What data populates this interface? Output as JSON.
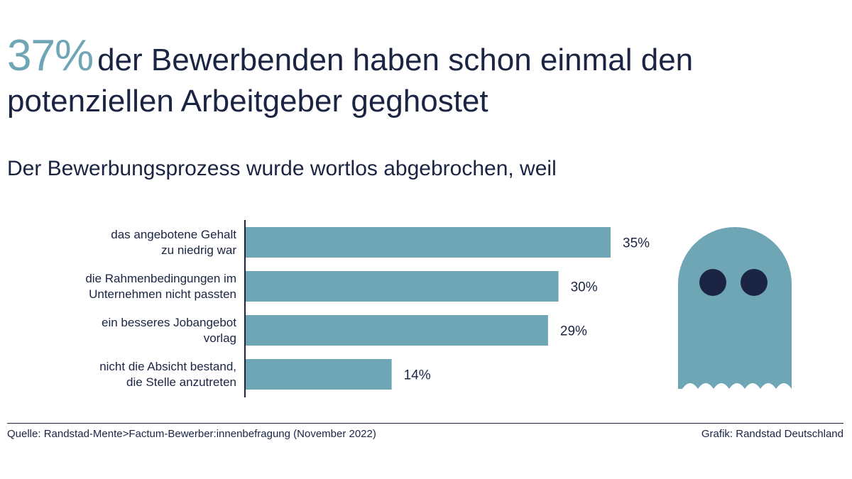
{
  "headline": {
    "highlight": "37%",
    "text": "der Bewerbenden haben schon einmal den potenziellen Arbeitgeber geghostet"
  },
  "subtitle": "Der Bewerbungsprozess wurde wortlos abgebrochen, weil",
  "colors": {
    "accent": "#6fa6b5",
    "bar": "#6fa6b5",
    "text": "#1b2543",
    "ghost_eyes": "#1b2543"
  },
  "chart_data": {
    "type": "bar",
    "orientation": "horizontal",
    "categories": [
      [
        "das angebotene Gehalt",
        "zu niedrig war"
      ],
      [
        "die Rahmenbedingungen im",
        "Unternehmen nicht passten"
      ],
      [
        "ein besseres Jobangebot",
        "vorlag"
      ],
      [
        "nicht die Absicht bestand,",
        "die Stelle anzutreten"
      ]
    ],
    "values": [
      35,
      30,
      29,
      14
    ],
    "value_labels": [
      "35%",
      "30%",
      "29%",
      "14%"
    ],
    "xlim": [
      0,
      35
    ],
    "grid": false,
    "legend": "none"
  },
  "illustration": {
    "icon": "ghost-icon"
  },
  "footer": {
    "source": "Quelle: Randstad-Mente>Factum-Bewerber:innenbefragung (November 2022)",
    "credit": "Grafik: Randstad Deutschland"
  }
}
